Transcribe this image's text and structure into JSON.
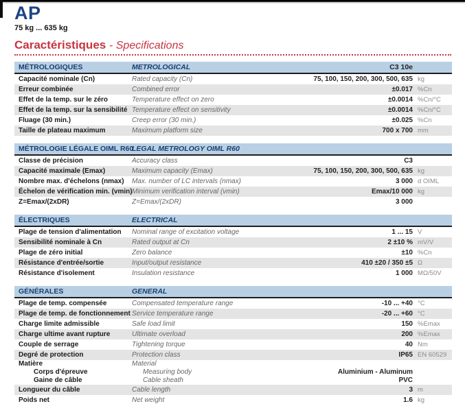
{
  "header": {
    "product": "AP",
    "capacity_range": "75 kg ... 635 kg",
    "title_fr": "Caractéristiques",
    "title_en": "- Specifications"
  },
  "colors": {
    "brand_navy": "#1c4587",
    "accent_red": "#c63440",
    "band_blue": "#b9cfe4",
    "row_shade_gray": "#e4e4e4",
    "english_italic_gray": "#666666",
    "unit_gray": "#8a8a8a"
  },
  "table": {
    "sections": [
      {
        "header_fr": "MÉTROLOGIQUES",
        "header_en": "METROLOGICAL",
        "header_value": "C3 10e",
        "rows": [
          {
            "fr": "Capacité nominale (Cn)",
            "en": "Rated capacity (Cn)",
            "value": "75, 100, 150, 200, 300, 500, 635",
            "unit": "kg",
            "shaded": false
          },
          {
            "fr": "Erreur combinée",
            "en": "Combined error",
            "value": "±0.017",
            "unit": "%Cn",
            "shaded": true
          },
          {
            "fr": "Effet de la temp. sur le zéro",
            "en": "Temperature effect on zero",
            "value": "±0.0014",
            "unit": "%Cn/°C",
            "shaded": false
          },
          {
            "fr": "Effet de la temp. sur la sensibilité",
            "en": "Temperature effect on sensitivity",
            "value": "±0.0014",
            "unit": "%Cn/°C",
            "shaded": true
          },
          {
            "fr": "Fluage (30 min.)",
            "en": "Creep error (30 min.)",
            "value": "±0.025",
            "unit": "%Cn",
            "shaded": false
          },
          {
            "fr": "Taille de plateau maximum",
            "en": "Maximum platform size",
            "value": "700 x 700",
            "unit": "mm",
            "shaded": true
          }
        ]
      },
      {
        "header_fr": "MÉTROLOGIE LÉGALE OIML R60",
        "header_en": "LEGAL METROLOGY OIML R60",
        "header_value": "",
        "rows": [
          {
            "fr": "Classe de précision",
            "en": "Accuracy class",
            "value": "C3",
            "unit": "",
            "shaded": false
          },
          {
            "fr": "Capacité maximale (Emax)",
            "en": "Maximum capacity (Emax)",
            "value": "75, 100, 150, 200, 300, 500, 635",
            "unit": "kg",
            "shaded": true
          },
          {
            "fr": "Nombre max. d'échelons (nmax)",
            "en": "Max. number of LC intervals (nmax)",
            "value": "3 000",
            "unit": "d OIML",
            "shaded": false
          },
          {
            "fr": "Échelon de vérification min. (vmin)",
            "en": "Minimum verification interval (vmin)",
            "value": "Emax/10 000",
            "unit": "kg",
            "shaded": true
          },
          {
            "fr": "Z=Emax/(2xDR)",
            "en": "Z=Emax/(2xDR)",
            "value": "3 000",
            "unit": "",
            "shaded": false
          }
        ]
      },
      {
        "header_fr": "ÉLECTRIQUES",
        "header_en": "ELECTRICAL",
        "header_value": "",
        "rows": [
          {
            "fr": "Plage de tension d'alimentation",
            "en": "Nominal range of excitation voltage",
            "value": "1 ... 15",
            "unit": "V",
            "shaded": false
          },
          {
            "fr": "Sensibilité nominale à Cn",
            "en": "Rated output at Cn",
            "value": "2 ±10 %",
            "unit": "mV/V",
            "shaded": true
          },
          {
            "fr": "Plage de zéro initial",
            "en": "Zero balance",
            "value": "±10",
            "unit": "%Cn",
            "shaded": false
          },
          {
            "fr": "Résistance d'entrée/sortie",
            "en": "Input/output resistance",
            "value": "410 ±20 / 350 ±5",
            "unit": "Ω",
            "shaded": true
          },
          {
            "fr": "Résistance d'isolement",
            "en": "Insulation resistance",
            "value": "1 000",
            "unit": "MΩ/50V",
            "shaded": false
          }
        ]
      },
      {
        "header_fr": "GÉNÉRALES",
        "header_en": "GENERAL",
        "header_value": "",
        "rows": [
          {
            "fr": "Plage de temp. compensée",
            "en": "Compensated temperature range",
            "value": "-10 ... +40",
            "unit": "°C",
            "shaded": false
          },
          {
            "fr": "Plage de temp. de fonctionnement",
            "en": "Service temperature range",
            "value": "-20 ... +60",
            "unit": "°C",
            "shaded": true
          },
          {
            "fr": "Charge limite admissible",
            "en": "Safe load limit",
            "value": "150",
            "unit": "%Emax",
            "shaded": false
          },
          {
            "fr": "Charge ultime avant rupture",
            "en": "Ultimate overload",
            "value": "200",
            "unit": "%Emax",
            "shaded": true
          },
          {
            "fr": "Couple de serrage",
            "en": "Tightening torque",
            "value": "40",
            "unit": "Nm",
            "shaded": false
          },
          {
            "fr": "Degré de protection",
            "en": "Protection class",
            "value": "IP65",
            "unit": "EN 60529",
            "shaded": true
          },
          {
            "fr": "Matière",
            "en": "Material",
            "value": "",
            "unit": "",
            "shaded": false,
            "compact": true
          },
          {
            "fr": "Corps d'épreuve",
            "en": "Measuring body",
            "value": "Aluminium - Aluminum",
            "unit": "",
            "shaded": false,
            "compact": true,
            "indent": true
          },
          {
            "fr": "Gaine de câble",
            "en": "Cable sheath",
            "value": "PVC",
            "unit": "",
            "shaded": false,
            "compact": true,
            "indent": true
          },
          {
            "fr": "Longueur du câble",
            "en": "Cable length",
            "value": "3",
            "unit": "m",
            "shaded": true
          },
          {
            "fr": "Poids net",
            "en": "Net weight",
            "value": "1.6",
            "unit": "kg",
            "shaded": false
          }
        ]
      }
    ]
  }
}
